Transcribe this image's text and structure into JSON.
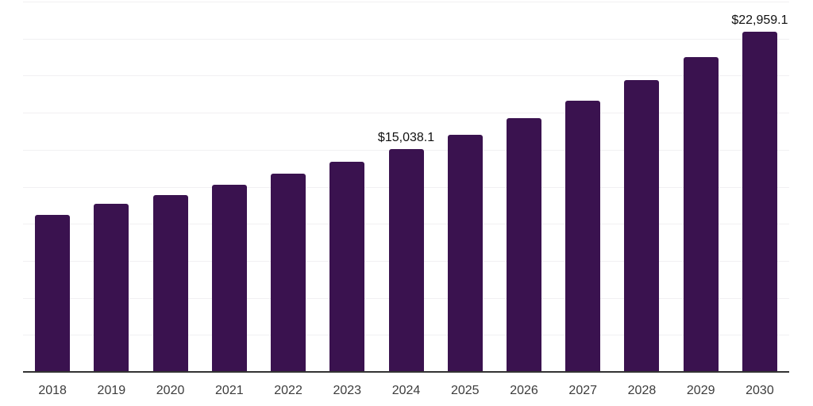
{
  "colors": {
    "background": "#ffffff",
    "bar": "#3a124f",
    "grid": "#f1f0f2",
    "axis": "#333333",
    "tick_label": "#3c3c3c",
    "data_label": "#111111"
  },
  "chart_data": {
    "type": "bar",
    "title": "",
    "xlabel": "",
    "ylabel": "",
    "legend": "none",
    "grid": "horizontal",
    "ylim": [
      0,
      25000
    ],
    "grid_interval": 2500,
    "categories": [
      "2018",
      "2019",
      "2020",
      "2021",
      "2022",
      "2023",
      "2024",
      "2025",
      "2026",
      "2027",
      "2028",
      "2029",
      "2030"
    ],
    "values": [
      10600,
      11350,
      11930,
      12630,
      13390,
      14200,
      15038.1,
      16000,
      17110,
      18300,
      19690,
      21230,
      22959.1
    ],
    "point_labels": [
      "",
      "",
      "",
      "",
      "",
      "",
      "$15,038.1",
      "",
      "",
      "",
      "",
      "",
      "$22,959.1"
    ],
    "labeled_points_note": "Only 2024 and 2030 carry data labels; other values estimated from gridlines (2,500 per division)"
  }
}
